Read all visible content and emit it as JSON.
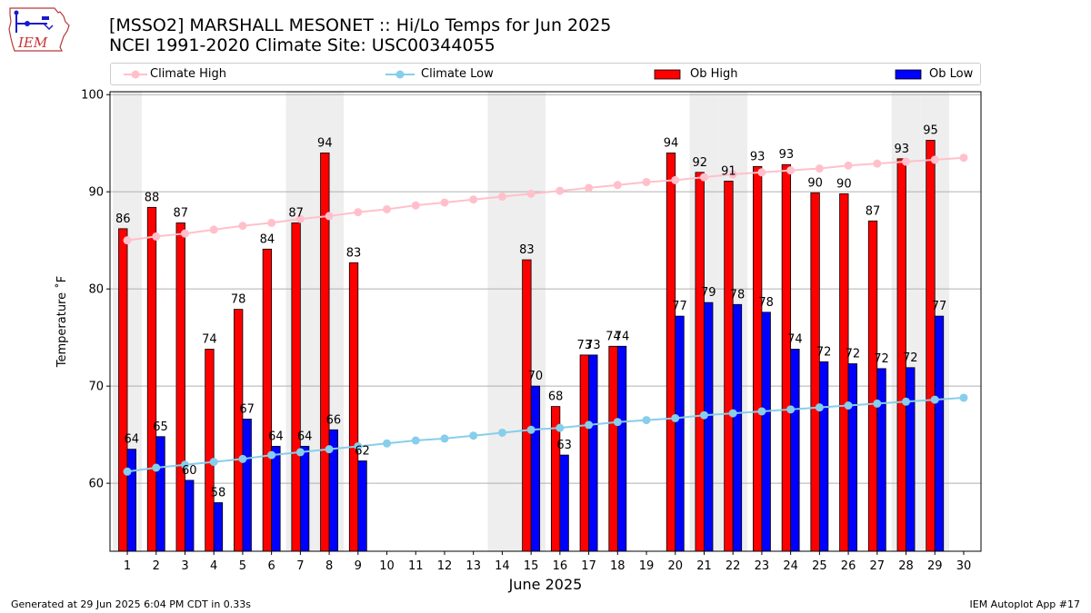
{
  "header": {
    "logo_text": "IEM",
    "title_line1": "[MSSO2] MARSHALL MESONET :: Hi/Lo Temps for Jun 2025",
    "title_line2": "NCEI 1991-2020 Climate Site: USC00344055"
  },
  "legend": {
    "items": [
      {
        "label": "Climate High",
        "kind": "line",
        "color": "#ffc0cb"
      },
      {
        "label": "Climate Low",
        "kind": "line",
        "color": "#87ceeb"
      },
      {
        "label": "Ob High",
        "kind": "patch",
        "color": "#ff0000"
      },
      {
        "label": "Ob Low",
        "kind": "patch",
        "color": "#0000ff"
      }
    ]
  },
  "footer": {
    "left": "Generated at 29 Jun 2025 6:04 PM CDT in 0.33s",
    "right": "IEM Autoplot App #17"
  },
  "chart_data": {
    "type": "bar",
    "xlabel": "June 2025",
    "ylabel": "Temperature ˚F",
    "ylim": [
      53,
      100.3
    ],
    "yticks": [
      60,
      70,
      80,
      90,
      100
    ],
    "grid": true,
    "legend_position": "top",
    "categories": [
      "1",
      "2",
      "3",
      "4",
      "5",
      "6",
      "7",
      "8",
      "9",
      "10",
      "11",
      "12",
      "13",
      "14",
      "15",
      "16",
      "17",
      "18",
      "19",
      "20",
      "21",
      "22",
      "23",
      "24",
      "25",
      "26",
      "27",
      "28",
      "29",
      "30"
    ],
    "shaded_days": [
      1,
      7,
      8,
      14,
      15,
      21,
      22,
      28,
      29
    ],
    "series": [
      {
        "name": "Ob High",
        "type": "bar",
        "color": "#ff0000",
        "values": [
          86.2,
          88.4,
          86.8,
          73.8,
          77.9,
          84.1,
          86.8,
          94.0,
          82.7,
          null,
          null,
          null,
          null,
          null,
          83.0,
          67.9,
          73.2,
          74.1,
          null,
          94.0,
          92.0,
          91.1,
          92.6,
          92.8,
          89.9,
          89.8,
          87.0,
          93.4,
          95.3,
          null
        ],
        "labels": [
          "86",
          "88",
          "87",
          "74",
          "78",
          "84",
          "87",
          "94",
          "83",
          "",
          "",
          "",
          "",
          "",
          "83",
          "68",
          "73",
          "74",
          "",
          "94",
          "92",
          "91",
          "93",
          "93",
          "90",
          "90",
          "87",
          "93",
          "95",
          ""
        ]
      },
      {
        "name": "Ob Low",
        "type": "bar",
        "color": "#0000ff",
        "values": [
          63.5,
          64.8,
          60.3,
          58.0,
          66.6,
          63.8,
          63.8,
          65.5,
          62.3,
          null,
          null,
          null,
          null,
          null,
          70.0,
          62.9,
          73.2,
          74.1,
          null,
          77.2,
          78.6,
          78.4,
          77.6,
          73.8,
          72.5,
          72.3,
          71.8,
          71.9,
          77.2,
          null
        ],
        "labels": [
          "64",
          "65",
          "60",
          "58",
          "67",
          "64",
          "64",
          "66",
          "62",
          "",
          "",
          "",
          "",
          "",
          "70",
          "63",
          "73",
          "74",
          "",
          "77",
          "79",
          "78",
          "78",
          "74",
          "72",
          "72",
          "72",
          "72",
          "77",
          ""
        ]
      },
      {
        "name": "Climate High",
        "type": "line",
        "color": "#ffc0cb",
        "values": [
          85.0,
          85.4,
          85.7,
          86.1,
          86.5,
          86.8,
          87.2,
          87.5,
          87.9,
          88.2,
          88.6,
          88.9,
          89.2,
          89.5,
          89.8,
          90.1,
          90.4,
          90.7,
          91.0,
          91.2,
          91.5,
          91.8,
          92.0,
          92.2,
          92.4,
          92.7,
          92.9,
          93.1,
          93.3,
          93.5
        ]
      },
      {
        "name": "Climate Low",
        "type": "line",
        "color": "#87ceeb",
        "values": [
          61.2,
          61.6,
          61.9,
          62.2,
          62.5,
          62.9,
          63.2,
          63.5,
          63.8,
          64.1,
          64.4,
          64.6,
          64.9,
          65.2,
          65.5,
          65.7,
          66.0,
          66.3,
          66.5,
          66.7,
          67.0,
          67.2,
          67.4,
          67.6,
          67.8,
          68.0,
          68.2,
          68.4,
          68.6,
          68.8
        ]
      }
    ]
  }
}
